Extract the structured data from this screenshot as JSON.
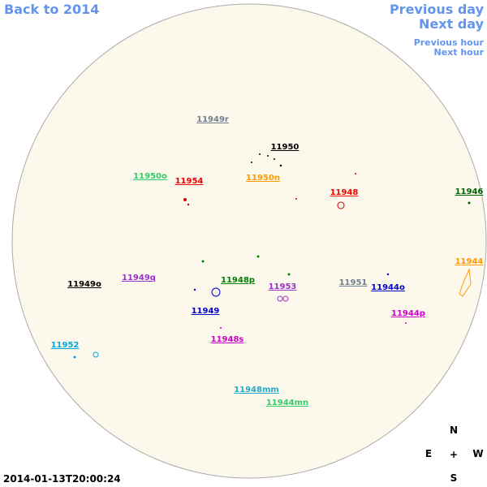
{
  "nav": {
    "back": "Back to 2014",
    "previous_day": "Previous day",
    "next_day": "Next day",
    "previous_hour": "Previous hour",
    "next_hour": "Next hour"
  },
  "regions": [
    "11949r",
    "11950",
    "11950o",
    "11954",
    "11950n",
    "11948",
    "11946",
    "11944",
    "11949q",
    "11948p",
    "11953",
    "11951",
    "11944o",
    "11949o",
    "11949",
    "11944p",
    "11948s",
    "11952",
    "11948mm",
    "11944mn"
  ],
  "compass": {
    "north": "N",
    "east": "E",
    "center": "+",
    "west": "W",
    "south": "S"
  },
  "timestamp": "2014-01-13T20:00:24"
}
